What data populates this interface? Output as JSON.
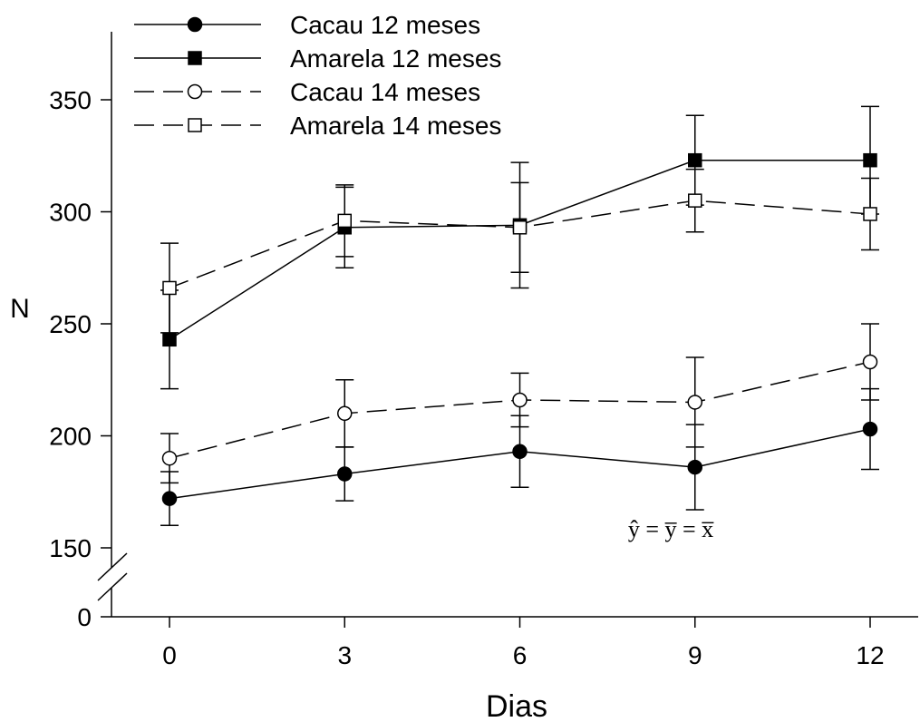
{
  "chart_data": {
    "type": "line",
    "title": "",
    "xlabel": "Dias",
    "ylabel": "N",
    "x": [
      0,
      3,
      6,
      9,
      12
    ],
    "x_ticks": [
      0,
      3,
      6,
      9,
      12
    ],
    "y_ticks": [
      0,
      150,
      200,
      250,
      300,
      350
    ],
    "ylim": [
      150,
      375
    ],
    "y_axis_break": true,
    "grid": false,
    "legend_position": "top-left",
    "annotation": "ŷ = y̅ = x̅",
    "series": [
      {
        "name": "Cacau 12 meses",
        "marker": "filled-circle",
        "line": "solid",
        "values": [
          172,
          183,
          193,
          186,
          203
        ],
        "errors": [
          12,
          12,
          16,
          19,
          18
        ]
      },
      {
        "name": "Amarela 12 meses",
        "marker": "filled-square",
        "line": "solid",
        "values": [
          243,
          293,
          294,
          323,
          323
        ],
        "errors": [
          22,
          18,
          28,
          20,
          24
        ]
      },
      {
        "name": "Cacau 14 meses",
        "marker": "open-circle",
        "line": "dashed",
        "values": [
          190,
          210,
          216,
          215,
          233
        ],
        "errors": [
          11,
          15,
          12,
          20,
          17
        ]
      },
      {
        "name": "Amarela 14 meses",
        "marker": "open-square",
        "line": "dashed",
        "values": [
          266,
          296,
          293,
          305,
          299
        ],
        "errors": [
          20,
          16,
          20,
          14,
          16
        ]
      }
    ]
  }
}
